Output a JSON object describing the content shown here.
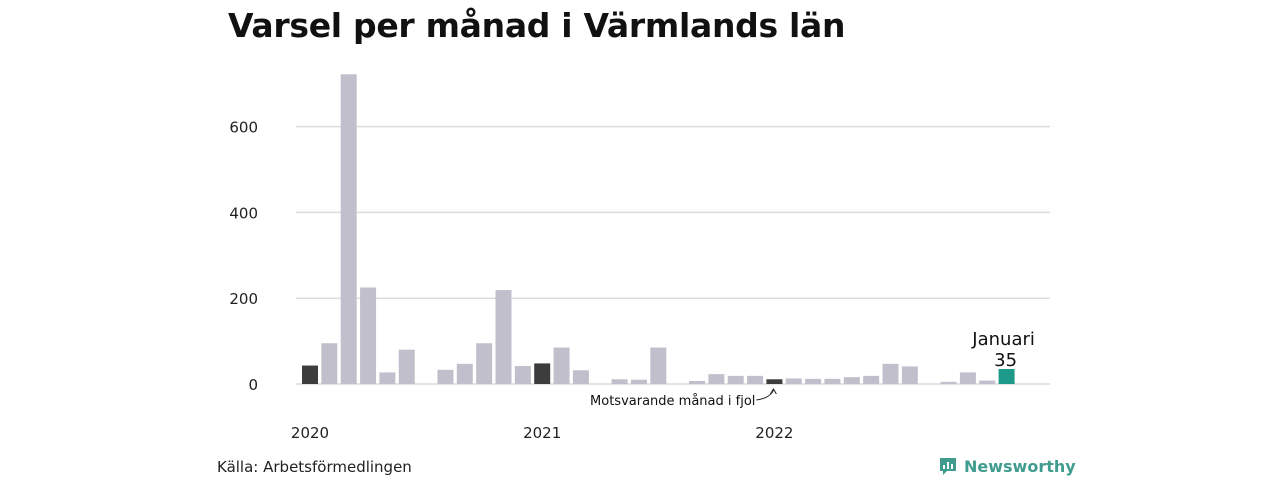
{
  "chart_data": {
    "type": "bar",
    "title": "Varsel per månad i Värmlands län",
    "ylim": [
      0,
      725
    ],
    "yticks": [
      0,
      200,
      400,
      600
    ],
    "grid": true,
    "year_labels": [
      {
        "label": "2020",
        "index": 0
      },
      {
        "label": "2021",
        "index": 12
      },
      {
        "label": "2022",
        "index": 24
      }
    ],
    "values": [
      43,
      95,
      722,
      225,
      27,
      80,
      0,
      33,
      47,
      95,
      219,
      42,
      48,
      85,
      32,
      0,
      11,
      10,
      85,
      0,
      7,
      23,
      19,
      19,
      11,
      13,
      12,
      12,
      16,
      19,
      47,
      41,
      0,
      5,
      27,
      8,
      35
    ],
    "highlight_prev_indices": [
      0,
      12,
      24
    ],
    "current_index": 36,
    "current_label": "Januari",
    "current_value": "35",
    "annotation": "Motsvarande månad i fjol",
    "colors": {
      "bar": "#c1bfcb",
      "prev": "#3d3d3d",
      "current": "#1e9a8a",
      "grid": "#dcdcdc"
    }
  },
  "source": "Källa: Arbetsförmedlingen",
  "brand": {
    "name": "Newsworthy",
    "icon": "newsworthy-chart-icon"
  }
}
